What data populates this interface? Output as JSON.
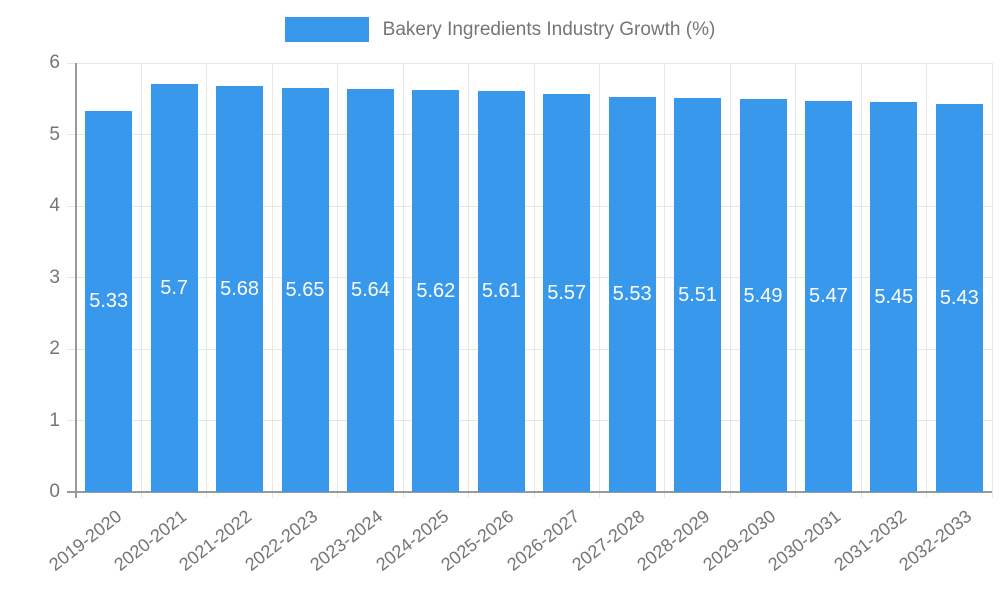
{
  "chart_data": {
    "type": "bar",
    "title": "Bakery Ingredients Industry Growth (%)",
    "legend": {
      "position": "top",
      "label": "Bakery Ingredients Industry Growth (%)"
    },
    "categories": [
      "2019-2020",
      "2020-2021",
      "2021-2022",
      "2022-2023",
      "2023-2024",
      "2024-2025",
      "2025-2026",
      "2026-2027",
      "2027-2028",
      "2028-2029",
      "2029-2030",
      "2030-2031",
      "2031-2032",
      "2032-2033"
    ],
    "values": [
      5.33,
      5.7,
      5.68,
      5.65,
      5.64,
      5.62,
      5.61,
      5.57,
      5.53,
      5.51,
      5.49,
      5.47,
      5.45,
      5.43
    ],
    "value_labels": [
      "5.33",
      "5.7",
      "5.68",
      "5.65",
      "5.64",
      "5.62",
      "5.61",
      "5.57",
      "5.53",
      "5.51",
      "5.49",
      "5.47",
      "5.45",
      "5.43"
    ],
    "xlabel": "",
    "ylabel": "",
    "ylim": [
      0,
      6
    ],
    "yticks": [
      0,
      1,
      2,
      3,
      4,
      5,
      6
    ],
    "grid": true,
    "colors": {
      "bar": "#3898EC",
      "value_label": "#FFFFFF",
      "axis_text": "#757575",
      "gridline": "#E6E6E6",
      "axis_line": "#9A9A9A",
      "background": "#FFFFFF"
    }
  }
}
